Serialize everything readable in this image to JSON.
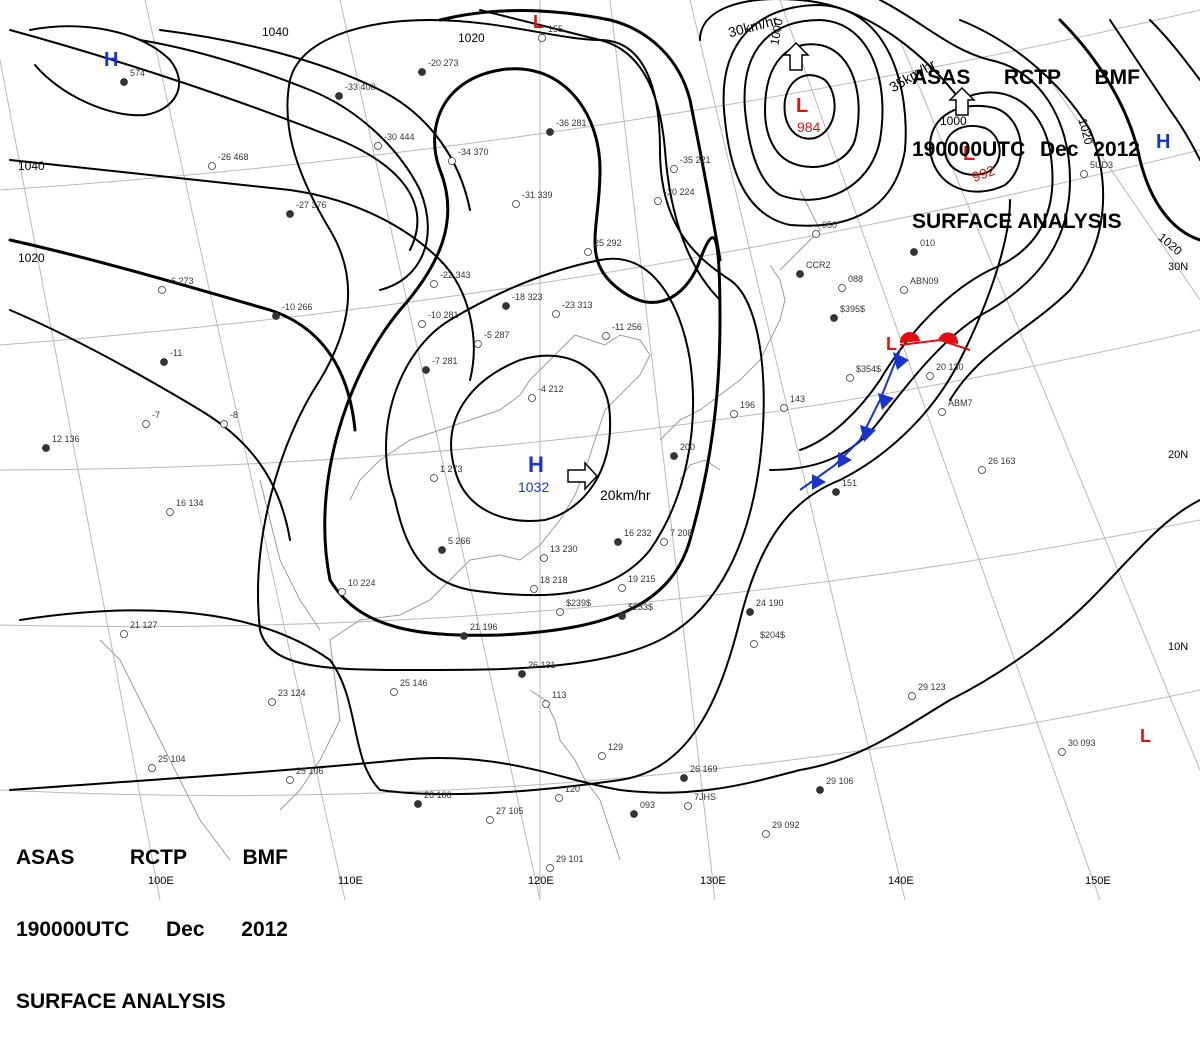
{
  "title_top": {
    "line1": [
      "ASAS",
      "RCTP",
      "BMF"
    ],
    "line2": [
      "190000UTC",
      "Dec",
      "2012"
    ],
    "line3": "SURFACE ANALYSIS"
  },
  "title_bottom": {
    "line1": [
      "ASAS",
      "RCTP",
      "BMF"
    ],
    "line2": [
      "190000UTC",
      "Dec",
      "2012"
    ],
    "line3": "SURFACE ANALYSIS"
  },
  "pressure_centers": {
    "high_main_letter": "H",
    "high_main_value": "1032",
    "high_main_motion": "20km/hr",
    "high_nw_letter": "H",
    "high_ne_letter": "H",
    "low_north_letter": "L",
    "low_deep_letter": "L",
    "low_deep_value": "984",
    "low_deep_motion": "30km/hr",
    "low_east_letter": "L",
    "low_east_value": "992",
    "low_east_motion": "35km/hr",
    "low_front_letter": "L",
    "low_se_letter": "L"
  },
  "isobar_labels": {
    "l1040a": "1040",
    "l1020a": "1020",
    "l1040b": "1040",
    "l1020b": "1020",
    "l1000a": "1000",
    "l1000b": "1000",
    "l1020c": "1020",
    "l1020d": "1020"
  },
  "latitude_labels": [
    "30N",
    "20N",
    "10N"
  ],
  "longitude_labels": [
    "100E",
    "110E",
    "120E",
    "130E",
    "140E",
    "150E"
  ],
  "station_obs": [
    {
      "id": "obs-1",
      "text": "-33 400"
    },
    {
      "id": "obs-2",
      "text": "-26 468"
    },
    {
      "id": "obs-3",
      "text": "-30 444"
    },
    {
      "id": "obs-4",
      "text": "-20 273"
    },
    {
      "id": "obs-5",
      "text": "-34 370"
    },
    {
      "id": "obs-6",
      "text": "-31 339"
    },
    {
      "id": "obs-7",
      "text": "-36 281"
    },
    {
      "id": "obs-8",
      "text": "-35 221"
    },
    {
      "id": "obs-9",
      "text": "-30 224"
    },
    {
      "id": "obs-10",
      "text": "-27 376"
    },
    {
      "id": "obs-11",
      "text": "-22 343"
    },
    {
      "id": "obs-12",
      "text": "25 292"
    },
    {
      "id": "obs-13",
      "text": "-18 323"
    },
    {
      "id": "obs-14",
      "text": "-23 313"
    },
    {
      "id": "obs-15",
      "text": "-10 281"
    },
    {
      "id": "obs-16",
      "text": "-10 266"
    },
    {
      "id": "obs-17",
      "text": "-6 273"
    },
    {
      "id": "obs-18",
      "text": "-11 256"
    },
    {
      "id": "obs-19",
      "text": "-7 281"
    },
    {
      "id": "obs-20",
      "text": "-5 287"
    },
    {
      "id": "obs-21",
      "text": "-4 212"
    },
    {
      "id": "obs-22",
      "text": "12 136"
    },
    {
      "id": "obs-23",
      "text": "16 134"
    },
    {
      "id": "obs-24",
      "text": "1 273"
    },
    {
      "id": "obs-25",
      "text": "5 266"
    },
    {
      "id": "obs-26",
      "text": "10 224"
    },
    {
      "id": "obs-27",
      "text": "21 127"
    },
    {
      "id": "obs-28",
      "text": "21 196"
    },
    {
      "id": "obs-29",
      "text": "13 230"
    },
    {
      "id": "obs-30",
      "text": "18 218"
    },
    {
      "id": "obs-31",
      "text": "16 232"
    },
    {
      "id": "obs-32",
      "text": "19 215"
    },
    {
      "id": "obs-33",
      "text": "7 208"
    },
    {
      "id": "obs-34",
      "text": "200"
    },
    {
      "id": "obs-35",
      "text": "196"
    },
    {
      "id": "obs-36",
      "text": "143"
    },
    {
      "id": "obs-37",
      "text": "151"
    },
    {
      "id": "obs-38",
      "text": "050"
    },
    {
      "id": "obs-39",
      "text": "088"
    },
    {
      "id": "obs-40",
      "text": "010"
    },
    {
      "id": "obs-41",
      "text": "20 130"
    },
    {
      "id": "obs-42",
      "text": "26 163"
    },
    {
      "id": "obs-43",
      "text": "24 190"
    },
    {
      "id": "obs-44",
      "text": "25 146"
    },
    {
      "id": "obs-45",
      "text": "23 124"
    },
    {
      "id": "obs-46",
      "text": "26 131"
    },
    {
      "id": "obs-47",
      "text": "113"
    },
    {
      "id": "obs-48",
      "text": "129"
    },
    {
      "id": "obs-49",
      "text": "26 169"
    },
    {
      "id": "obs-50",
      "text": "25 104"
    },
    {
      "id": "obs-51",
      "text": "25 106"
    },
    {
      "id": "obs-52",
      "text": "28 106"
    },
    {
      "id": "obs-53",
      "text": "27 105"
    },
    {
      "id": "obs-54",
      "text": "120"
    },
    {
      "id": "obs-55",
      "text": "093"
    },
    {
      "id": "obs-56",
      "text": "29 101"
    },
    {
      "id": "obs-57",
      "text": "29 092"
    },
    {
      "id": "obs-58",
      "text": "29 106"
    },
    {
      "id": "obs-59",
      "text": "29 123"
    },
    {
      "id": "obs-60",
      "text": "30 093"
    },
    {
      "id": "obs-61",
      "text": "574"
    },
    {
      "id": "obs-62",
      "text": "155"
    },
    {
      "id": "obs-63",
      "text": "-8"
    },
    {
      "id": "obs-64",
      "text": "-11"
    },
    {
      "id": "obs-65",
      "text": "-7"
    },
    {
      "id": "obs-66",
      "text": "$204$"
    },
    {
      "id": "obs-67",
      "text": "$233$"
    },
    {
      "id": "obs-68",
      "text": "$239$"
    },
    {
      "id": "obs-69",
      "text": "$354$"
    },
    {
      "id": "obs-70",
      "text": "$395$"
    },
    {
      "id": "obs-71",
      "text": "ABN09"
    },
    {
      "id": "obs-72",
      "text": "ABM7"
    },
    {
      "id": "obs-73",
      "text": "CCR2"
    },
    {
      "id": "obs-74",
      "text": "5UD3"
    },
    {
      "id": "obs-75",
      "text": "7JHS"
    }
  ],
  "colors": {
    "high": "#1a33cc",
    "low": "#e01010",
    "cold_front": "#1a33cc",
    "warm_front": "#e01010",
    "isobar": "#000000",
    "grid": "#b8b8b8",
    "coast": "#9a9a9a"
  }
}
